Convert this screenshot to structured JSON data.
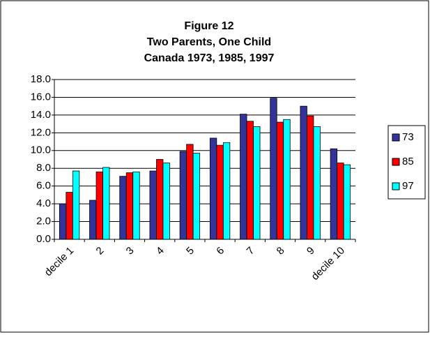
{
  "chart_data": {
    "type": "bar",
    "title_lines": [
      "Figure 12",
      "Two Parents, One Child",
      "Canada 1973, 1985, 1997"
    ],
    "categories": [
      "decile 1",
      "2",
      "3",
      "4",
      "5",
      "6",
      "7",
      "8",
      "9",
      "decile 10"
    ],
    "series": [
      {
        "name": "73",
        "color": "#333399",
        "values": [
          4.0,
          4.4,
          7.1,
          7.7,
          9.9,
          11.4,
          14.1,
          15.9,
          15.0,
          10.2
        ]
      },
      {
        "name": "85",
        "color": "#ff0000",
        "values": [
          5.3,
          7.6,
          7.5,
          9.0,
          10.7,
          10.6,
          13.3,
          13.2,
          13.9,
          8.6
        ]
      },
      {
        "name": "97",
        "color": "#00ffff",
        "values": [
          7.7,
          8.1,
          7.6,
          8.6,
          9.7,
          10.9,
          12.7,
          13.5,
          12.7,
          8.4
        ]
      }
    ],
    "ylim": [
      0,
      18
    ],
    "yticks": [
      {
        "value": 0,
        "label": "0.0"
      },
      {
        "value": 2,
        "label": "2.0"
      },
      {
        "value": 4,
        "label": "4.0"
      },
      {
        "value": 6,
        "label": "6.0"
      },
      {
        "value": 8,
        "label": "8.0"
      },
      {
        "value": 10,
        "label": "10.0"
      },
      {
        "value": 12,
        "label": "12.0"
      },
      {
        "value": 14,
        "label": "14.0"
      },
      {
        "value": 16,
        "label": "16.0"
      },
      {
        "value": 18,
        "label": "18.0"
      }
    ],
    "grid": true,
    "legend": "right"
  }
}
